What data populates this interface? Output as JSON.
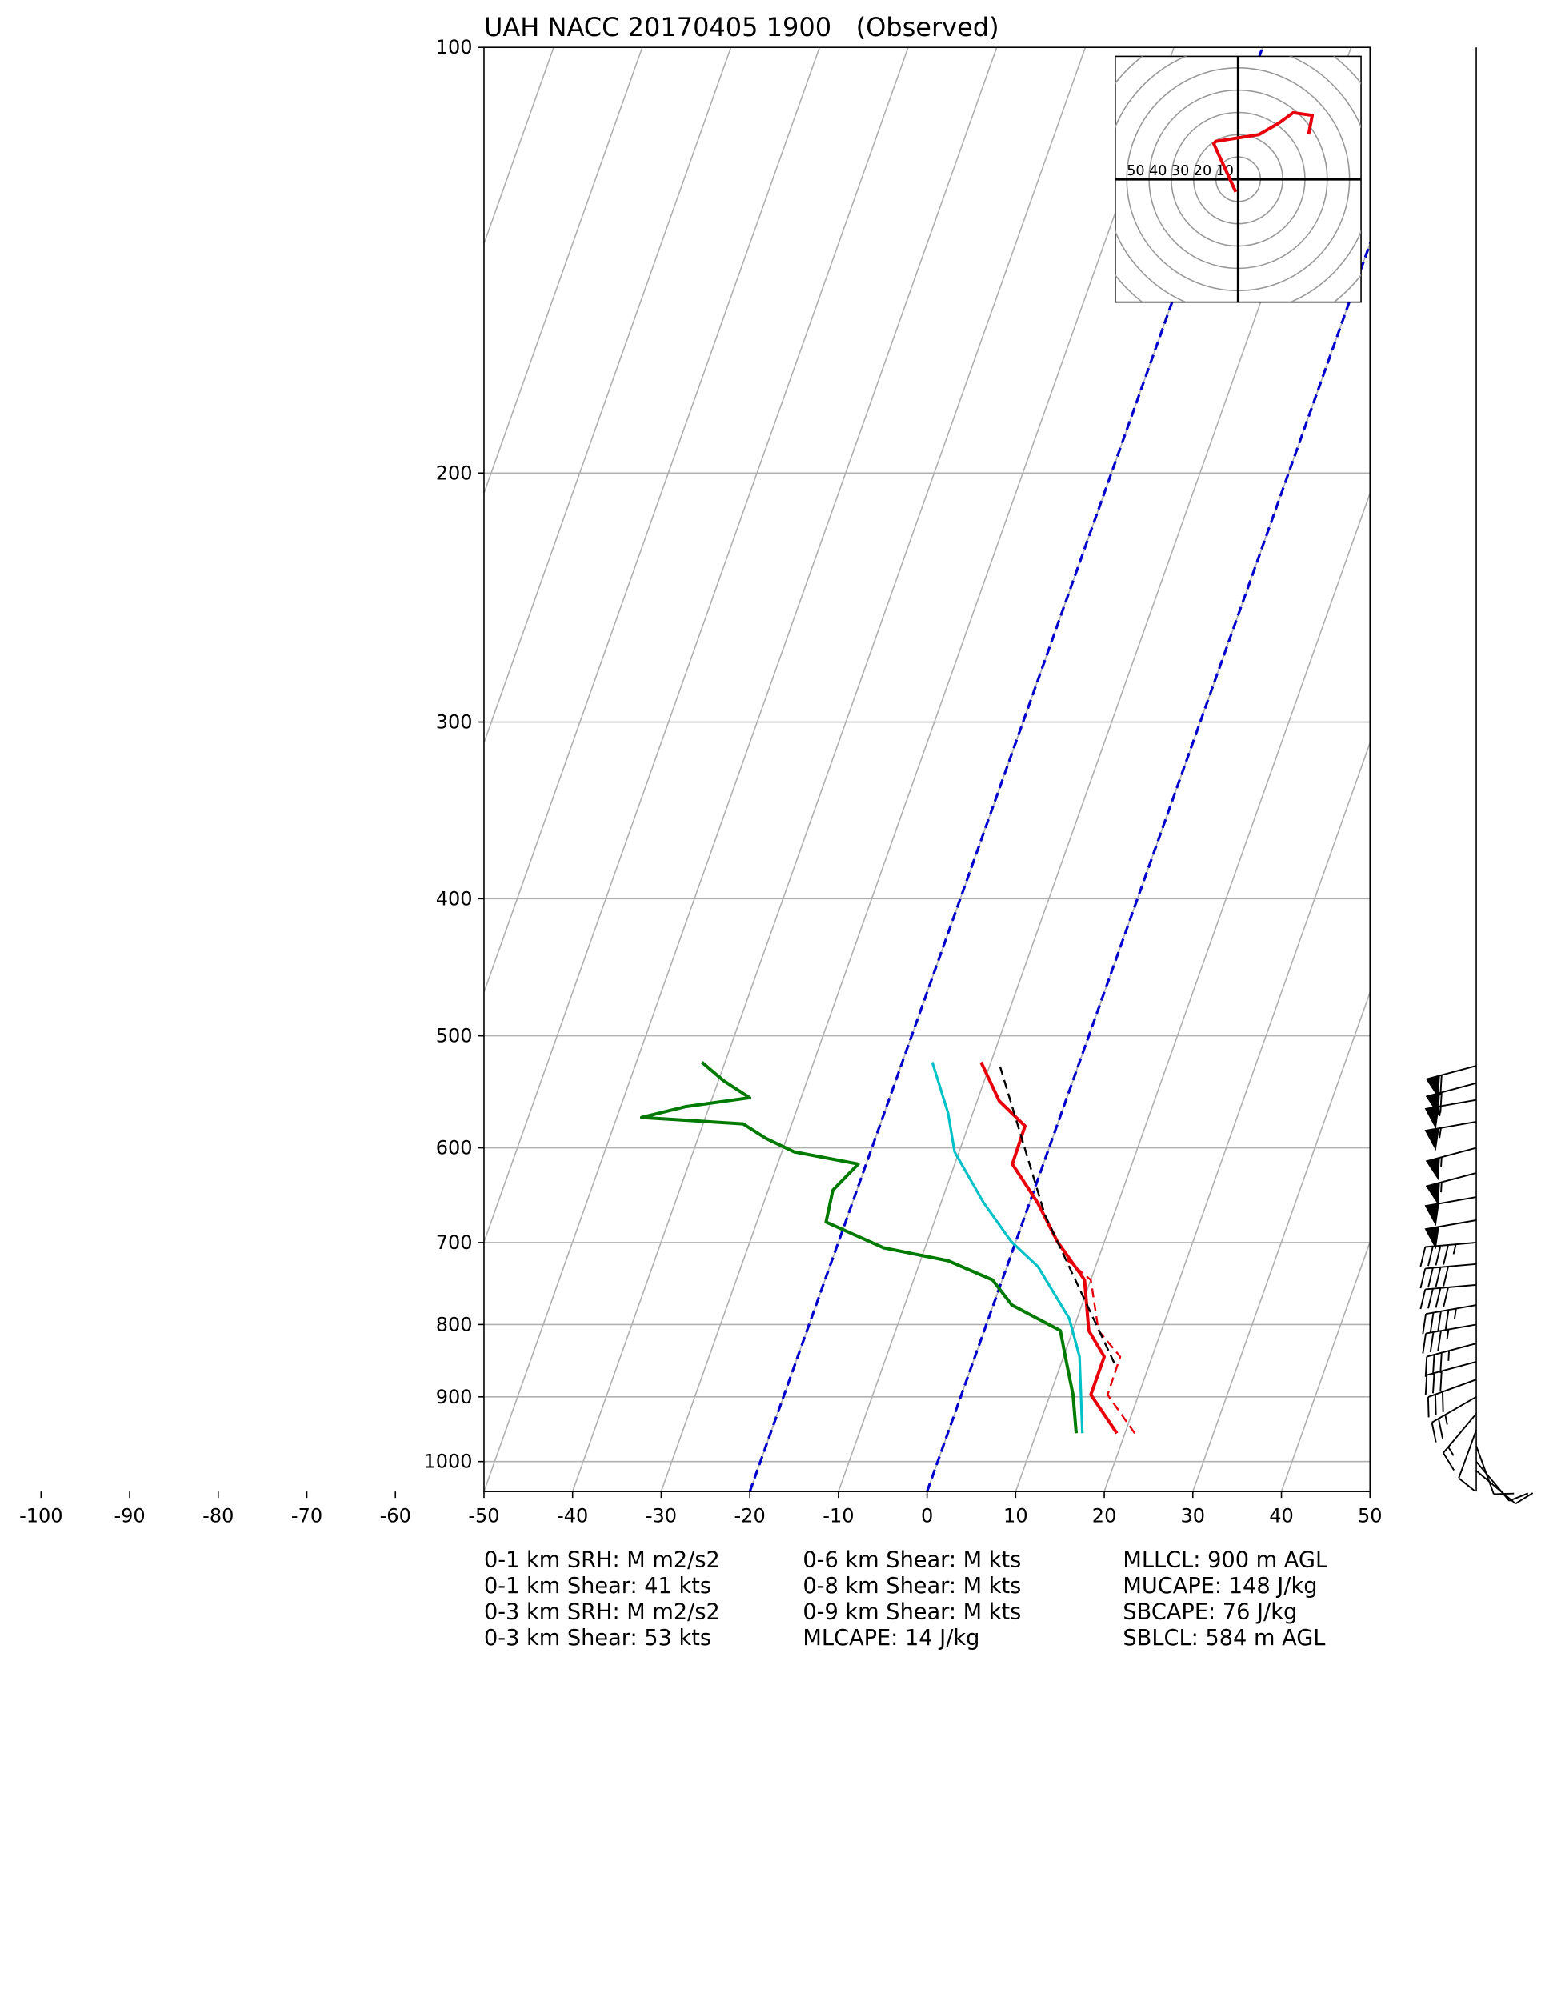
{
  "chart_data": {
    "type": "skewt",
    "title": "UAH NACC 20170405 1900   (Observed)",
    "ylim": [
      1050,
      100
    ],
    "yticks": [
      100,
      200,
      300,
      400,
      500,
      600,
      700,
      800,
      900,
      1000
    ],
    "log_scale_y": true,
    "xlim": [
      -50,
      50
    ],
    "xticks": [
      -100,
      -90,
      -80,
      -70,
      -60,
      -50,
      -40,
      -30,
      -20,
      -10,
      0,
      10,
      20,
      30,
      40,
      50
    ],
    "grid": true,
    "highlight_isotherms": [
      -20,
      0
    ],
    "highlight_color": "#0000cc",
    "series": [
      {
        "color": "#e8000b",
        "style": "solid",
        "width": 2.5,
        "pressure": [
          955,
          897,
          843,
          808,
          744,
          699,
          656,
          616,
          579,
          556,
          522
        ],
        "values": [
          19.1,
          14.6,
          14.6,
          11.8,
          9.3,
          4.7,
          0.9,
          -3.5,
          -3.6,
          -7.5,
          -11.1
        ]
      },
      {
        "color": "#e8000b",
        "style": "dashed",
        "width": 1.5,
        "pressure": [
          955,
          897,
          843,
          808,
          744,
          720
        ],
        "values": [
          21.1,
          16.5,
          16.4,
          12.9,
          10.0,
          6.5
        ]
      },
      {
        "color": "#00c0c8",
        "style": "solid",
        "width": 2,
        "pressure": [
          955,
          843,
          792,
          728,
          699,
          656,
          604,
          567,
          522
        ],
        "values": [
          15.2,
          11.8,
          9.1,
          3.5,
          -0.5,
          -5.2,
          -10.5,
          -12.8,
          -16.6
        ]
      },
      {
        "color": "#007a00",
        "style": "solid",
        "width": 2.5,
        "pressure": [
          955,
          897,
          843,
          808,
          775,
          744,
          721,
          706,
          677,
          643,
          616,
          604,
          591,
          577,
          571,
          561,
          553,
          538,
          522
        ],
        "values": [
          14.5,
          12.6,
          10.2,
          8.6,
          2.1,
          -1.1,
          -6.9,
          -14.7,
          -22.2,
          -22.7,
          -20.9,
          -28.6,
          -32.3,
          -35.5,
          -47.2,
          -42.6,
          -35.8,
          -39.4,
          -42.6
        ]
      },
      {
        "color": "#000000",
        "style": "dashed",
        "width": 1.5,
        "pressure": [
          852,
          669,
          522
        ],
        "values": [
          16.0,
          2.2,
          -9.1
        ]
      }
    ],
    "wind": {
      "pressure": [
        525,
        540,
        555,
        575,
        600,
        625,
        650,
        675,
        700,
        725,
        750,
        775,
        800,
        825,
        850,
        875,
        900,
        925,
        950,
        975,
        1000,
        1015
      ],
      "speed": [
        60,
        60,
        55,
        55,
        55,
        55,
        50,
        50,
        45,
        40,
        40,
        45,
        35,
        35,
        30,
        30,
        25,
        15,
        10,
        10,
        10,
        10
      ],
      "direction": [
        255,
        255,
        260,
        260,
        255,
        255,
        260,
        260,
        265,
        265,
        265,
        260,
        260,
        255,
        255,
        250,
        240,
        220,
        200,
        160,
        140,
        130
      ]
    },
    "hodograph": {
      "rings": [
        10,
        20,
        30,
        40,
        50,
        60,
        70
      ],
      "color": "#e8000b",
      "u": [
        -1.1,
        -11,
        -10,
        9.2,
        18,
        24.7,
        33.3,
        31.6
      ],
      "v": [
        -5.7,
        16,
        17,
        20,
        25,
        29.9,
        28.7,
        20.1
      ]
    },
    "stats": [
      [
        "0-1 km SRH: M m2/s2",
        "0-1 km Shear: 41 kts",
        "0-3 km SRH: M m2/s2",
        "0-3 km Shear: 53 kts"
      ],
      [
        "0-6 km Shear: M kts",
        "0-8 km Shear: M kts",
        "0-9 km Shear: M kts",
        "MLCAPE: 14 J/kg"
      ],
      [
        "MLLCL: 900 m AGL",
        "MUCAPE: 148 J/kg",
        "SBCAPE: 76 J/kg",
        "SBLCL: 584 m AGL"
      ]
    ]
  }
}
